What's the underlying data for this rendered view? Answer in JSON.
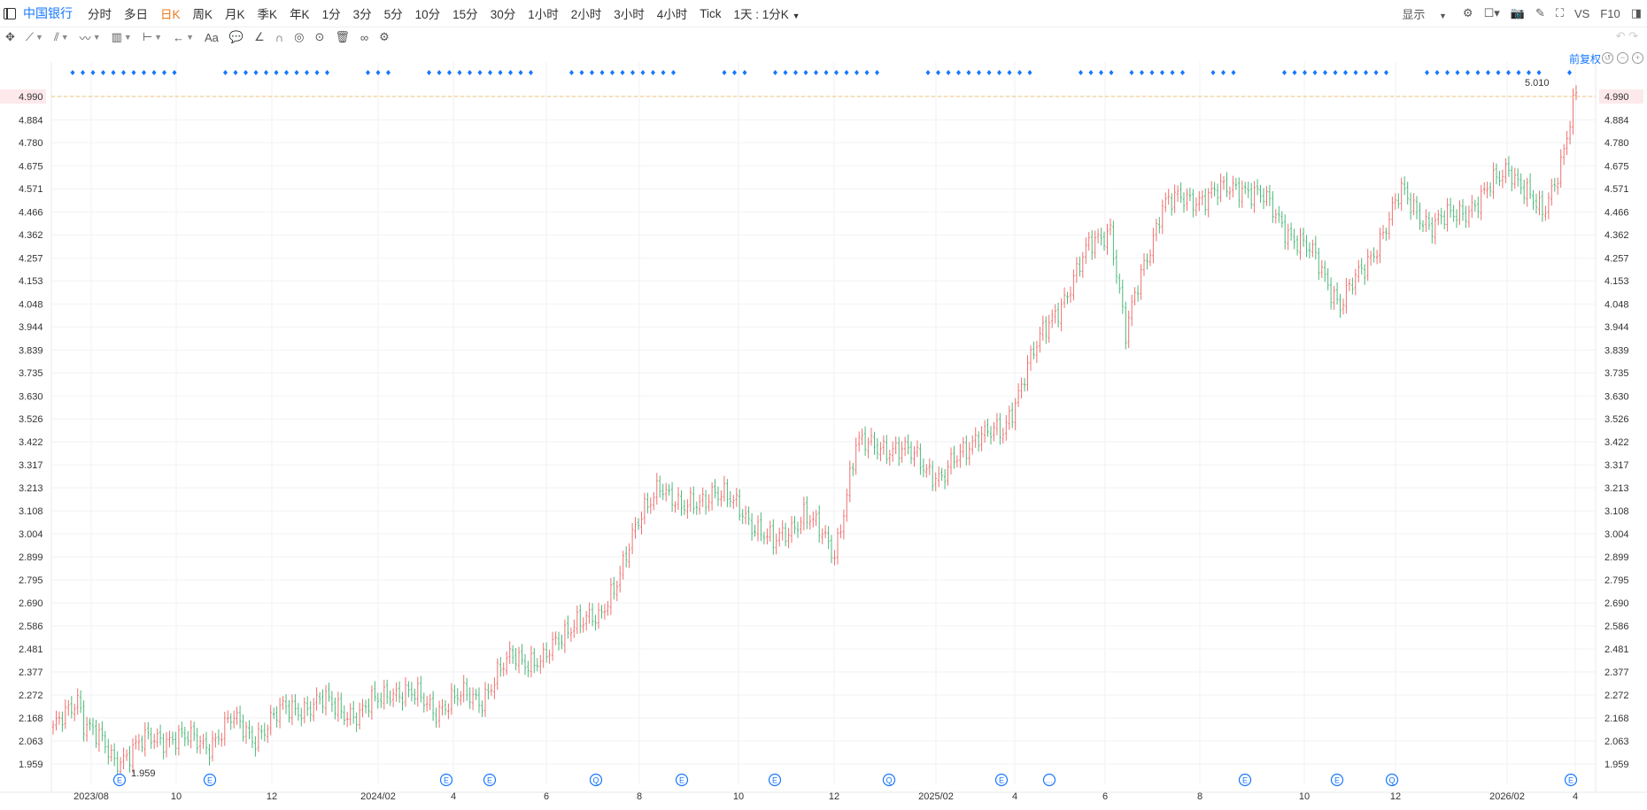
{
  "header": {
    "stock_name": "中国银行",
    "timeframes": [
      "分时",
      "多日",
      "日K",
      "周K",
      "月K",
      "季K",
      "年K",
      "1分",
      "3分",
      "5分",
      "10分",
      "15分",
      "30分",
      "1小时",
      "2小时",
      "3小时",
      "4小时",
      "Tick",
      "1天 : 1分K"
    ],
    "active_timeframe": "日K",
    "display_label": "显示",
    "vs_label": "VS",
    "f10_label": "F10"
  },
  "adjust_label": "前复权",
  "toolbar": {
    "text_tool_label": "Aa"
  },
  "chart_data": {
    "type": "ohlc",
    "title": "",
    "price_ticks": [
      4.99,
      4.884,
      4.78,
      4.675,
      4.571,
      4.466,
      4.362,
      4.257,
      4.153,
      4.048,
      3.944,
      3.839,
      3.735,
      3.63,
      3.526,
      3.422,
      3.317,
      3.213,
      3.108,
      3.004,
      2.899,
      2.795,
      2.69,
      2.586,
      2.481,
      2.377,
      2.272,
      2.168,
      2.063,
      1.959
    ],
    "current_price": "4.990",
    "high_label": "5.010",
    "low_label": "1.959",
    "x_labels": [
      "2023/08",
      "10",
      "12",
      "2024/02",
      "4",
      "6",
      "8",
      "10",
      "12",
      "2025/02",
      "4",
      "6",
      "8",
      "10",
      "12",
      "2026/02",
      "4"
    ],
    "price_path": [
      [
        0,
        2.1
      ],
      [
        8,
        2.27
      ],
      [
        10,
        2.16
      ],
      [
        20,
        1.97
      ],
      [
        28,
        2.05
      ],
      [
        40,
        2.09
      ],
      [
        50,
        2.04
      ],
      [
        58,
        2.16
      ],
      [
        65,
        2.08
      ],
      [
        75,
        2.2
      ],
      [
        88,
        2.24
      ],
      [
        100,
        2.18
      ],
      [
        110,
        2.3
      ],
      [
        122,
        2.24
      ],
      [
        125,
        2.21
      ],
      [
        135,
        2.27
      ],
      [
        140,
        2.26
      ],
      [
        150,
        2.45
      ],
      [
        160,
        2.42
      ],
      [
        170,
        2.62
      ],
      [
        178,
        2.6
      ],
      [
        188,
        2.95
      ],
      [
        198,
        3.25
      ],
      [
        205,
        3.1
      ],
      [
        215,
        3.2
      ],
      [
        225,
        3.11
      ],
      [
        235,
        2.95
      ],
      [
        245,
        3.1
      ],
      [
        255,
        2.92
      ],
      [
        262,
        3.4
      ],
      [
        270,
        3.41
      ],
      [
        282,
        3.35
      ],
      [
        290,
        3.25
      ],
      [
        302,
        3.47
      ],
      [
        310,
        3.45
      ],
      [
        318,
        3.78
      ],
      [
        325,
        3.95
      ],
      [
        338,
        4.3
      ],
      [
        345,
        4.4
      ],
      [
        350,
        3.9
      ],
      [
        355,
        4.18
      ],
      [
        362,
        4.5
      ],
      [
        380,
        4.55
      ],
      [
        388,
        4.59
      ],
      [
        395,
        4.52
      ],
      [
        405,
        4.35
      ],
      [
        412,
        4.25
      ],
      [
        420,
        4.05
      ],
      [
        428,
        4.21
      ],
      [
        440,
        4.55
      ],
      [
        450,
        4.4
      ],
      [
        458,
        4.46
      ],
      [
        466,
        4.52
      ],
      [
        475,
        4.68
      ],
      [
        482,
        4.52
      ],
      [
        486,
        4.45
      ],
      [
        492,
        4.7
      ],
      [
        497,
        4.99
      ]
    ],
    "markers": [
      {
        "label": "E",
        "x": "2023/08"
      },
      {
        "label": "E",
        "x": "10"
      },
      {
        "label": "E",
        "x": "4"
      },
      {
        "label": "E",
        "x": "4"
      },
      {
        "label": "Q",
        "x": "6"
      },
      {
        "label": "E",
        "x": "8"
      },
      {
        "label": "E",
        "x": "10"
      },
      {
        "label": "Q",
        "x": "12"
      },
      {
        "label": "E",
        "x": "4"
      },
      {
        "label": "…",
        "x": "4"
      },
      {
        "label": "E",
        "x": "8"
      },
      {
        "label": "E",
        "x": "10"
      },
      {
        "label": "Q",
        "x": "12"
      },
      {
        "label": "E",
        "x": "4"
      }
    ],
    "colors": {
      "up": "#f07070",
      "down": "#4cb97a",
      "accent": "#1677ff",
      "price_line": "#f0c070",
      "price_label": "#e8334a"
    }
  }
}
